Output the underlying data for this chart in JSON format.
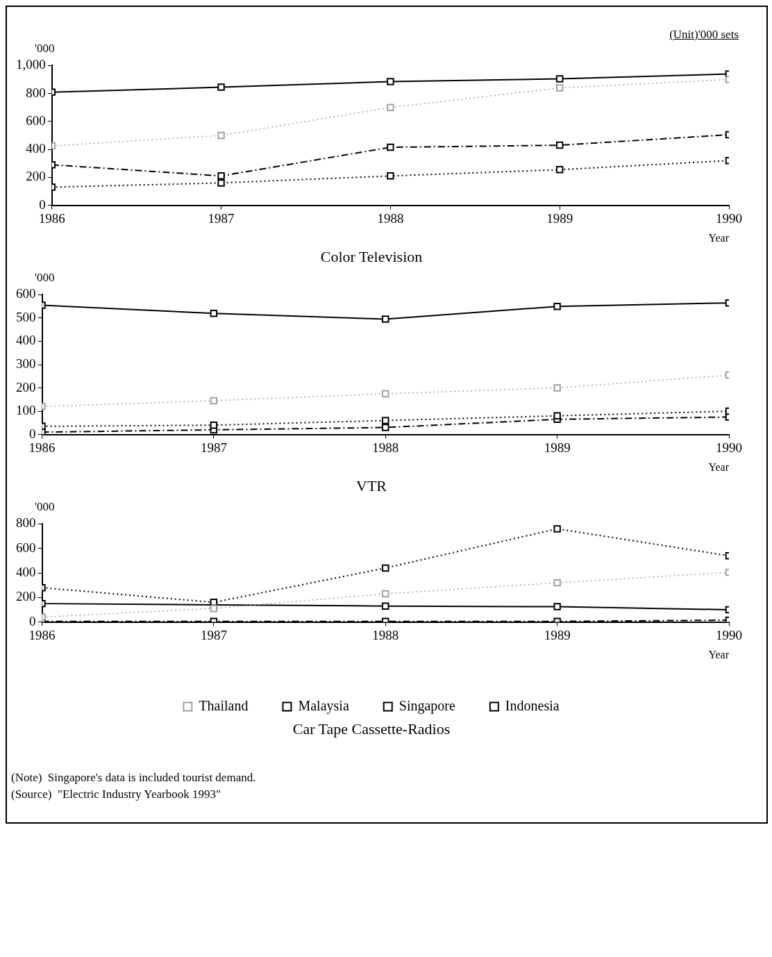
{
  "chart_data": [
    {
      "type": "line",
      "title": "Color Television",
      "xlabel": "Year",
      "ylabel": "'000",
      "annotations": [
        "(Unit)'000 sets"
      ],
      "x": [
        1986,
        1987,
        1988,
        1989,
        1990
      ],
      "xlim": [
        1986,
        1990
      ],
      "xticks": [
        1986,
        1987,
        1988,
        1989,
        1990
      ],
      "ylim": [
        0,
        1000
      ],
      "yticks": [
        0,
        200,
        400,
        600,
        800,
        {
          "value": 1000,
          "label": "1,000"
        }
      ],
      "grid": false,
      "legend": false,
      "marker": "square",
      "series": [
        {
          "color": "#a0a0a0",
          "line_style": "dotted",
          "values": [
            425,
            500,
            700,
            840,
            900
          ]
        },
        {
          "color": "#000000",
          "line_style": "dotted",
          "values": [
            130,
            160,
            210,
            255,
            320
          ]
        },
        {
          "color": "#000000",
          "line_style": "solid",
          "values": [
            810,
            845,
            885,
            905,
            940
          ]
        },
        {
          "color": "#000000",
          "line_style": "dashed",
          "values": [
            290,
            210,
            415,
            430,
            505
          ]
        }
      ]
    },
    {
      "type": "line",
      "title": "VTR",
      "xlabel": "Year",
      "ylabel": "'000",
      "x": [
        1986,
        1987,
        1988,
        1989,
        1990
      ],
      "xlim": [
        1986,
        1990
      ],
      "xticks": [
        1986,
        1987,
        1988,
        1989,
        1990
      ],
      "ylim": [
        0,
        600
      ],
      "yticks": [
        0,
        100,
        200,
        300,
        400,
        500,
        600
      ],
      "grid": false,
      "legend": false,
      "marker": "square",
      "series": [
        {
          "color": "#a0a0a0",
          "line_style": "dotted",
          "values": [
            120,
            145,
            175,
            200,
            255
          ]
        },
        {
          "color": "#000000",
          "line_style": "dotted",
          "values": [
            35,
            40,
            60,
            80,
            100
          ]
        },
        {
          "color": "#000000",
          "line_style": "solid",
          "values": [
            555,
            520,
            495,
            550,
            565
          ]
        },
        {
          "color": "#000000",
          "line_style": "dashed",
          "values": [
            10,
            20,
            30,
            65,
            75
          ]
        }
      ]
    },
    {
      "type": "line",
      "title": "Car Tape Cassette-Radios",
      "xlabel": "Year",
      "ylabel": "'000",
      "annotations": [
        "(Note)  Singapore's data is included tourist demand.",
        "(Source)  \"Electric Industry Yearbook 1993\""
      ],
      "x": [
        1986,
        1987,
        1988,
        1989,
        1990
      ],
      "xlim": [
        1986,
        1990
      ],
      "xticks": [
        1986,
        1987,
        1988,
        1989,
        1990
      ],
      "ylim": [
        0,
        800
      ],
      "yticks": [
        0,
        200,
        400,
        600,
        800
      ],
      "grid": false,
      "legend": "bottom",
      "marker": "square",
      "series": [
        {
          "name": "Thailand",
          "color": "#a0a0a0",
          "line_style": "dotted",
          "values": [
            40,
            110,
            230,
            320,
            405
          ]
        },
        {
          "name": "Malaysia",
          "color": "#000000",
          "line_style": "dotted",
          "values": [
            280,
            160,
            440,
            760,
            540
          ]
        },
        {
          "name": "Singapore",
          "color": "#000000",
          "line_style": "solid",
          "values": [
            150,
            140,
            130,
            125,
            100
          ]
        },
        {
          "name": "Indonesia",
          "color": "#000000",
          "line_style": "dashed",
          "values": [
            5,
            5,
            5,
            5,
            15
          ]
        }
      ]
    }
  ]
}
